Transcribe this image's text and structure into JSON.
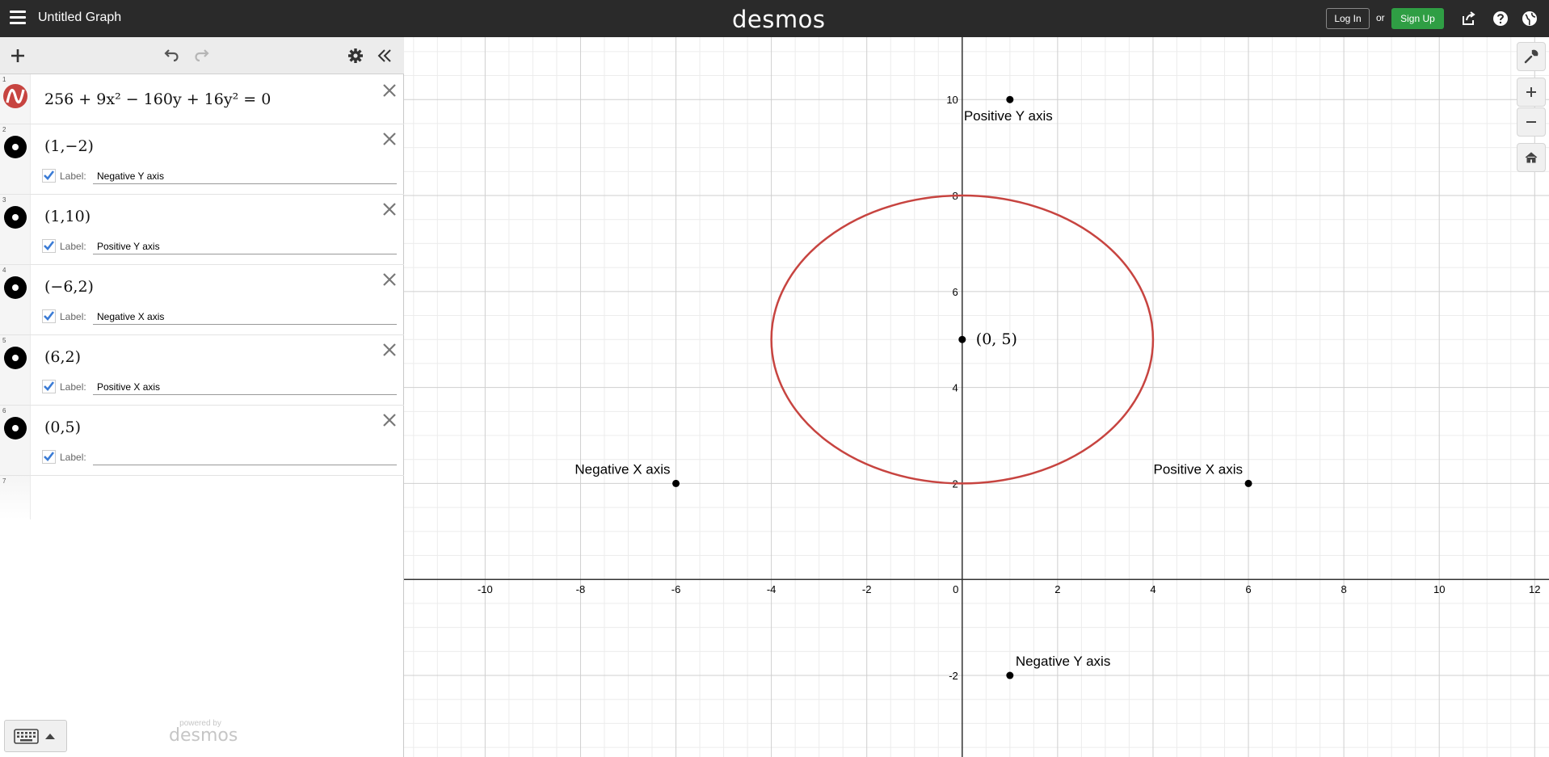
{
  "header": {
    "title": "Untitled Graph",
    "brand": "desmos",
    "login_label": "Log In",
    "or_label": "or",
    "signup_label": "Sign Up"
  },
  "expressions": [
    {
      "index": "1",
      "type": "equation",
      "math": "256 + 9x² − 160y + 16y² = 0",
      "color": "#c74440"
    },
    {
      "index": "2",
      "type": "point",
      "math": "(1,−2)",
      "label_prefix": "Label:",
      "label": "Negative Y axis"
    },
    {
      "index": "3",
      "type": "point",
      "math": "(1,10)",
      "label_prefix": "Label:",
      "label": "Positive Y axis"
    },
    {
      "index": "4",
      "type": "point",
      "math": "(−6,2)",
      "label_prefix": "Label:",
      "label": "Negative X axis"
    },
    {
      "index": "5",
      "type": "point",
      "math": "(6,2)",
      "label_prefix": "Label:",
      "label": "Positive X axis"
    },
    {
      "index": "6",
      "type": "point",
      "math": "(0,5)",
      "label_prefix": "Label:",
      "label": ""
    },
    {
      "index": "7",
      "type": "empty"
    }
  ],
  "footer": {
    "powered_by": "powered by",
    "brand": "desmos"
  },
  "chart_data": {
    "type": "scatter",
    "xlim": [
      -11.7,
      12.3
    ],
    "ylim": [
      -3.7,
      11.3
    ],
    "x_ticks": [
      "-10",
      "-8",
      "-6",
      "-4",
      "-2",
      "0",
      "2",
      "4",
      "6",
      "8",
      "10",
      "12"
    ],
    "y_ticks": [
      "-2",
      "2",
      "4",
      "6",
      "8",
      "10"
    ],
    "grid": true,
    "curves": [
      {
        "equation": "256 + 9x^2 - 160y + 16y^2 = 0",
        "kind": "ellipse",
        "center": [
          0,
          5
        ],
        "rx": 4,
        "ry": 3,
        "color": "#c74440"
      }
    ],
    "points": [
      {
        "x": 1,
        "y": -2,
        "label": "Negative Y axis"
      },
      {
        "x": 1,
        "y": 10,
        "label": "Positive Y axis"
      },
      {
        "x": -6,
        "y": 2,
        "label": "Negative X axis"
      },
      {
        "x": 6,
        "y": 2,
        "label": "Positive X axis"
      },
      {
        "x": 0,
        "y": 5,
        "label": "(0, 5)"
      }
    ]
  }
}
